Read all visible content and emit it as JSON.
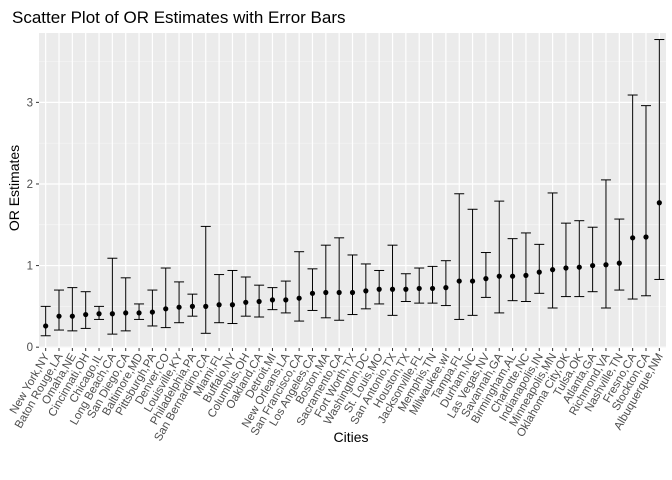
{
  "chart_data": {
    "type": "scatter",
    "title": "Scatter Plot of OR Estimates with Error Bars",
    "xlabel": "Cities",
    "ylabel": "OR Estimates",
    "ylim": [
      -0.01,
      3.85
    ],
    "yticks": [
      0,
      1,
      2,
      3
    ],
    "grid": true,
    "legend": "none",
    "colors": {
      "panel": "#ebebeb",
      "grid_major": "#ffffff",
      "grid_minor": "#f5f5f5",
      "marks": "#000000",
      "tick_text": "#4d4d4d"
    },
    "categories": [
      "New York,NY",
      "Baton Rouge,LA",
      "Omaha,NE",
      "Cincinnati,OH",
      "Chicago,IL",
      "Long Beach,CA",
      "San Diego,CA",
      "Baltimore,MD",
      "Pittsburgh,PA",
      "Denver,CO",
      "Louisville,KY",
      "Philadelphia,PA",
      "San Bernardino,CA",
      "Miami,FL",
      "Buffalo,NY",
      "Columbus,OH",
      "Oakland,CA",
      "Detroit,MI",
      "New Orleans,LA",
      "San Francisco,CA",
      "Los Angeles,CA",
      "Boston,MA",
      "Sacramento,CA",
      "Fort Worth,TX",
      "Washington,DC",
      "St. Louis,MO",
      "San Antonio,TX",
      "Houston,TX",
      "Jacksonville,FL",
      "Memphis,TN",
      "Milwaukee,wI",
      "Tampa,FL",
      "Durham,NC",
      "Las Vegas,NV",
      "Savannah,GA",
      "Birmingham,AL",
      "Charlotte,NC",
      "Indianapolis,IN",
      "Minneapolis,MN",
      "Oklahoma City,OK",
      "Tulsa,OK",
      "Atlanta,GA",
      "Richmond,VA",
      "Nashville,TN",
      "Fresno,CA",
      "Stockton,CA",
      "Albuquerque,NM"
    ],
    "estimates": [
      0.26,
      0.38,
      0.38,
      0.4,
      0.41,
      0.41,
      0.42,
      0.42,
      0.43,
      0.47,
      0.49,
      0.5,
      0.5,
      0.52,
      0.52,
      0.55,
      0.56,
      0.58,
      0.58,
      0.6,
      0.66,
      0.67,
      0.67,
      0.67,
      0.69,
      0.71,
      0.71,
      0.71,
      0.72,
      0.72,
      0.73,
      0.81,
      0.81,
      0.84,
      0.87,
      0.87,
      0.88,
      0.92,
      0.95,
      0.97,
      0.98,
      1.0,
      1.01,
      1.03,
      1.34,
      1.35,
      1.77
    ],
    "ci_lower": [
      0.14,
      0.21,
      0.2,
      0.23,
      0.34,
      0.16,
      0.2,
      0.34,
      0.26,
      0.24,
      0.3,
      0.38,
      0.17,
      0.3,
      0.29,
      0.38,
      0.37,
      0.46,
      0.42,
      0.32,
      0.45,
      0.36,
      0.33,
      0.4,
      0.47,
      0.53,
      0.39,
      0.56,
      0.54,
      0.54,
      0.51,
      0.34,
      0.39,
      0.61,
      0.42,
      0.57,
      0.56,
      0.66,
      0.48,
      0.62,
      0.62,
      0.68,
      0.48,
      0.7,
      0.59,
      0.63,
      0.83
    ],
    "ci_upper": [
      0.5,
      0.7,
      0.73,
      0.68,
      0.5,
      1.09,
      0.85,
      0.53,
      0.7,
      0.97,
      0.8,
      0.65,
      1.48,
      0.89,
      0.94,
      0.86,
      0.76,
      0.73,
      0.81,
      1.17,
      0.96,
      1.25,
      1.34,
      1.13,
      1.02,
      0.94,
      1.25,
      0.9,
      0.97,
      0.99,
      1.06,
      1.88,
      1.69,
      1.16,
      1.79,
      1.33,
      1.4,
      1.26,
      1.89,
      1.52,
      1.55,
      1.47,
      2.05,
      1.57,
      3.09,
      2.96,
      3.77
    ]
  }
}
